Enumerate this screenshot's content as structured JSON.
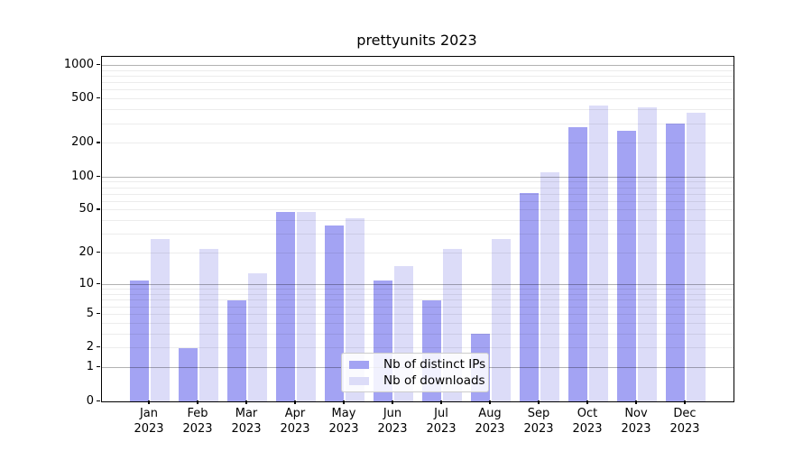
{
  "title": "prettyunits 2023",
  "chart_data": {
    "type": "bar",
    "title": "prettyunits 2023",
    "xlabel": "",
    "ylabel": "",
    "y_scale": "log1p",
    "ylim": [
      0,
      1200
    ],
    "grid": true,
    "legend_position": "lower center",
    "y_ticks": [
      0,
      1,
      2,
      5,
      10,
      20,
      50,
      100,
      200,
      500,
      1000
    ],
    "minor_grid_values": [
      3,
      4,
      6,
      7,
      8,
      9,
      30,
      40,
      60,
      70,
      80,
      90,
      300,
      400,
      600,
      700,
      800,
      900,
      2,
      5,
      20,
      50,
      200,
      500
    ],
    "major_grid_values": [
      1,
      10,
      100,
      1000
    ],
    "categories": [
      {
        "month": "Jan",
        "year": "2023"
      },
      {
        "month": "Feb",
        "year": "2023"
      },
      {
        "month": "Mar",
        "year": "2023"
      },
      {
        "month": "Apr",
        "year": "2023"
      },
      {
        "month": "May",
        "year": "2023"
      },
      {
        "month": "Jun",
        "year": "2023"
      },
      {
        "month": "Jul",
        "year": "2023"
      },
      {
        "month": "Aug",
        "year": "2023"
      },
      {
        "month": "Sep",
        "year": "2023"
      },
      {
        "month": "Oct",
        "year": "2023"
      },
      {
        "month": "Nov",
        "year": "2023"
      },
      {
        "month": "Dec",
        "year": "2023"
      }
    ],
    "series": [
      {
        "name": "Nb of distinct IPs",
        "color": "#a3a3f3",
        "values": [
          11,
          2,
          7,
          48,
          36,
          11,
          7,
          3,
          72,
          280,
          260,
          300
        ]
      },
      {
        "name": "Nb of downloads",
        "color": "#dcdcf8",
        "values": [
          27,
          22,
          13,
          48,
          42,
          15,
          22,
          27,
          110,
          440,
          420,
          380
        ]
      }
    ]
  },
  "colors": {
    "major_grid": "rgba(0,0,0,0.30)",
    "minor_grid": "rgba(0,0,0,0.075)",
    "axis": "#000000",
    "legend_border": "#cccccc"
  }
}
